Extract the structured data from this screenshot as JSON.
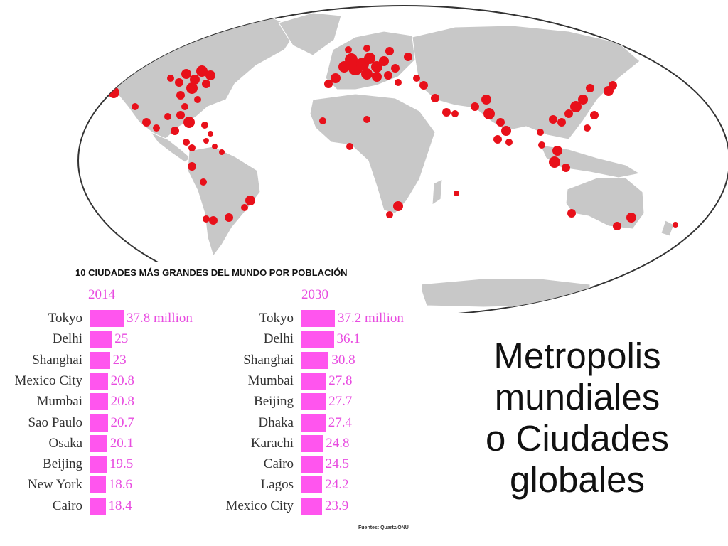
{
  "slide": {
    "title_lines": [
      "Metropolis",
      "mundiales",
      "o Ciudades",
      "globales"
    ]
  },
  "map": {
    "type": "world map with city population dots",
    "land_color": "#c8c8c8",
    "border_color": "#ffffff",
    "dot_color": "#e8101a"
  },
  "chart_data": {
    "type": "bar",
    "title": "10 CIUDADES MÁS GRANDES DEL MUNDO POR POBLACIÓN",
    "source": "Fuentes: Quartz/ONU",
    "bar_color": "#ff55ee",
    "value_color": "#e84ce0",
    "unit_label": "million",
    "panels": [
      {
        "year": "2014",
        "categories": [
          "Tokyo",
          "Delhi",
          "Shanghai",
          "Mexico City",
          "Mumbai",
          "Sao Paulo",
          "Osaka",
          "Beijing",
          "New York",
          "Cairo"
        ],
        "values": [
          37.8,
          25,
          23,
          20.8,
          20.8,
          20.7,
          20.1,
          19.5,
          18.6,
          18.4
        ],
        "value_labels": [
          "37.8 million",
          "25",
          "23",
          "20.8",
          "20.8",
          "20.7",
          "20.1",
          "19.5",
          "18.6",
          "18.4"
        ]
      },
      {
        "year": "2030",
        "categories": [
          "Tokyo",
          "Delhi",
          "Shanghai",
          "Mumbai",
          "Beijing",
          "Dhaka",
          "Karachi",
          "Cairo",
          "Lagos",
          "Mexico City"
        ],
        "values": [
          37.2,
          36.1,
          30.8,
          27.8,
          27.7,
          27.4,
          24.8,
          24.5,
          24.2,
          23.9
        ],
        "value_labels": [
          "37.2 million",
          "36.1",
          "30.8",
          "27.8",
          "27.7",
          "27.4",
          "24.8",
          "24.5",
          "24.2",
          "23.9"
        ]
      }
    ]
  }
}
